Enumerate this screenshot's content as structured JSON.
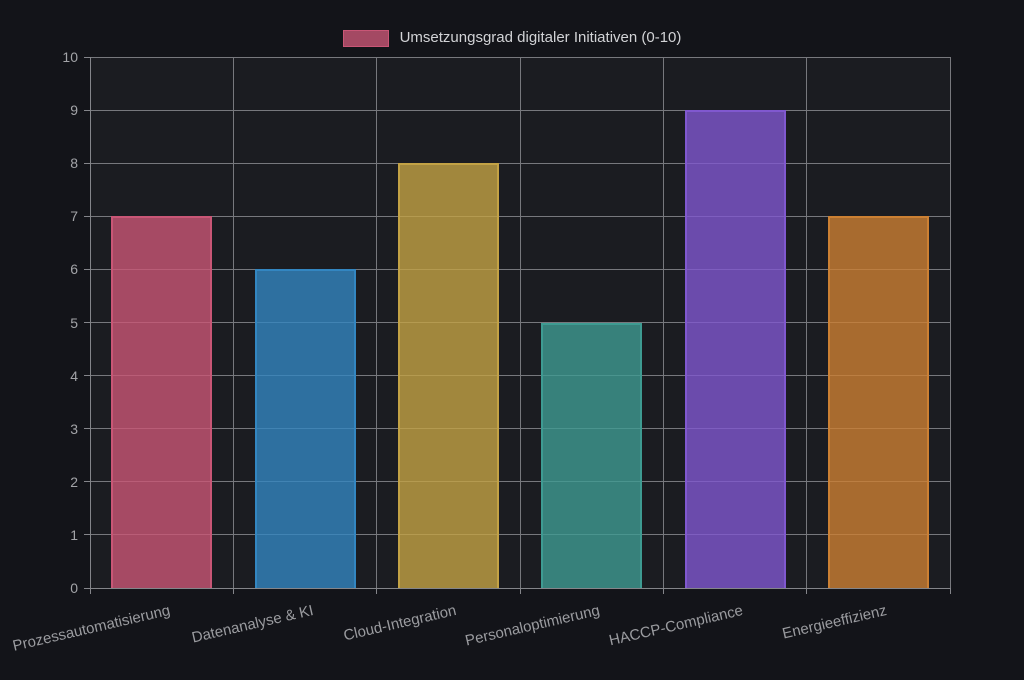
{
  "chart_data": {
    "type": "bar",
    "title": "",
    "legend": {
      "label": "Umsetzungsgrad digitaler Initiativen (0-10)",
      "position": "top"
    },
    "categories": [
      "Prozessautomatisierung",
      "Datenanalyse & KI",
      "Cloud-Integration",
      "Personaloptimierung",
      "HACCP-Compliance",
      "Energieeffizienz"
    ],
    "values": [
      7,
      6,
      8,
      5,
      9,
      7
    ],
    "bar_colors": [
      "#c95676",
      "#3386c1",
      "#c3a245",
      "#3e9b92",
      "#8058cf",
      "#cc8033"
    ],
    "bar_fill_alpha": 0.8,
    "ylim": [
      0,
      10
    ],
    "yticks": [
      0,
      1,
      2,
      3,
      4,
      5,
      6,
      7,
      8,
      9,
      10
    ],
    "grid": true,
    "xlabel": "",
    "ylabel": "",
    "styles": {
      "page_background": "#131419",
      "plot_background": "#1b1c21",
      "grid_color": "#77787d",
      "axis_color": "#84858a",
      "y_tick_label_color": "#a3a4a8",
      "x_tick_label_color": "#9b9ca0",
      "legend_text_color": "#d2d3d6"
    }
  }
}
